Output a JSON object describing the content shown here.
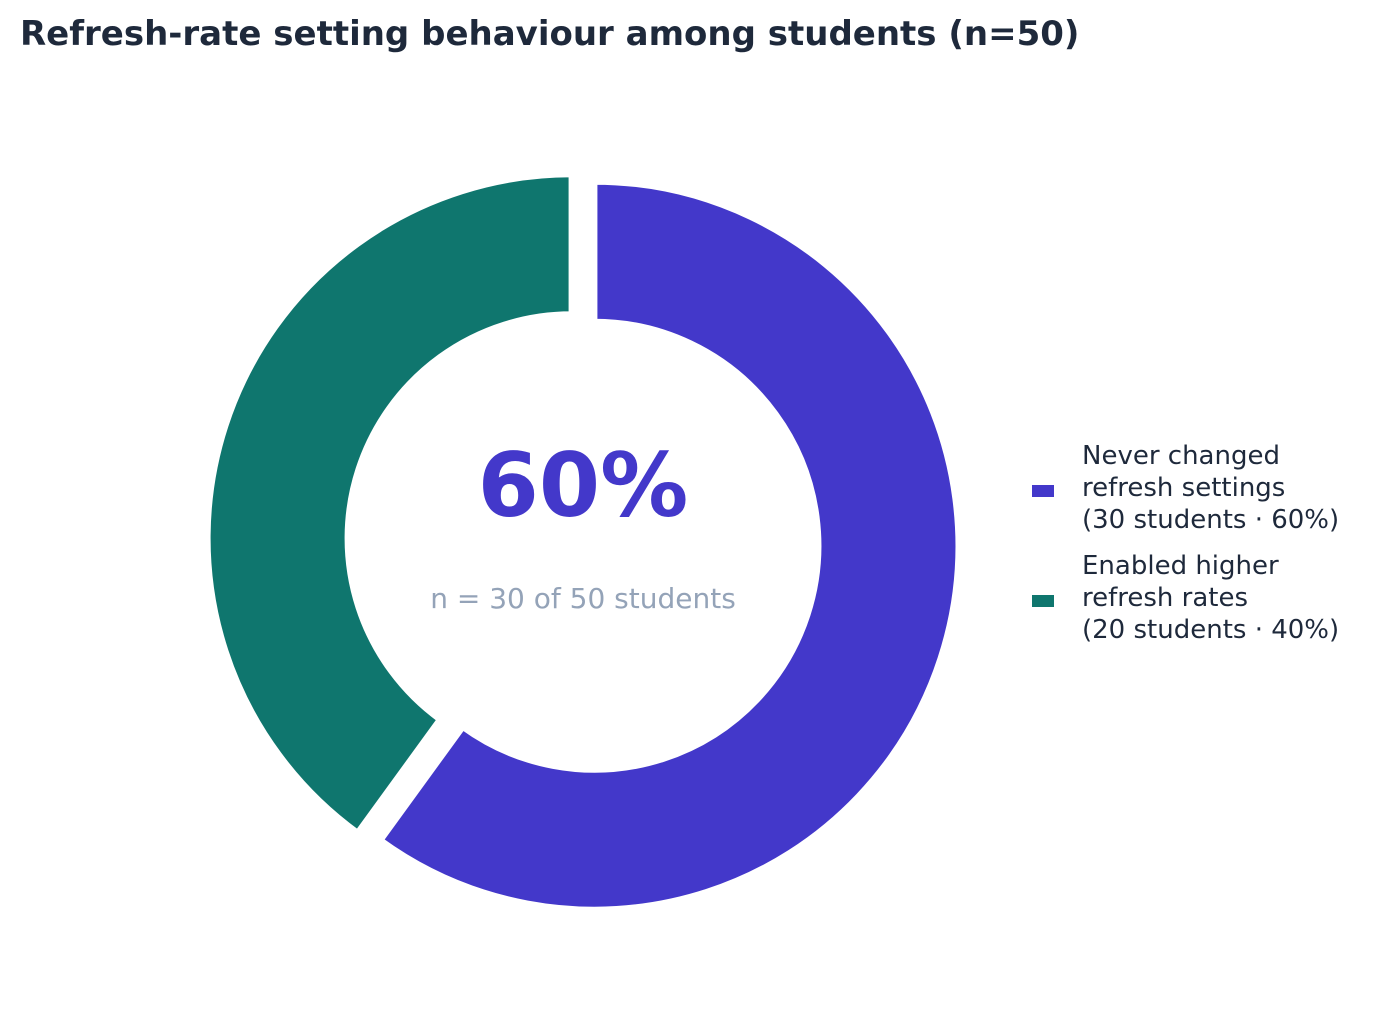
{
  "chart_data": {
    "type": "pie",
    "style": "donut",
    "title": "Refresh-rate setting behaviour among students (n=50)",
    "total": 50,
    "slices": [
      {
        "name": "Never changed refresh settings",
        "count": 30,
        "percent": 60,
        "color": "#4338ca",
        "legend_lines": [
          "Never changed",
          "refresh settings",
          "(30 students · 60%)"
        ]
      },
      {
        "name": "Enabled higher refresh rates",
        "count": 20,
        "percent": 40,
        "color": "#0f766e",
        "legend_lines": [
          "Enabled higher",
          "refresh rates",
          "(20 students · 40%)"
        ]
      }
    ],
    "center_value": "60%",
    "center_caption": "n = 30 of 50 students",
    "legend_placement": "right"
  }
}
